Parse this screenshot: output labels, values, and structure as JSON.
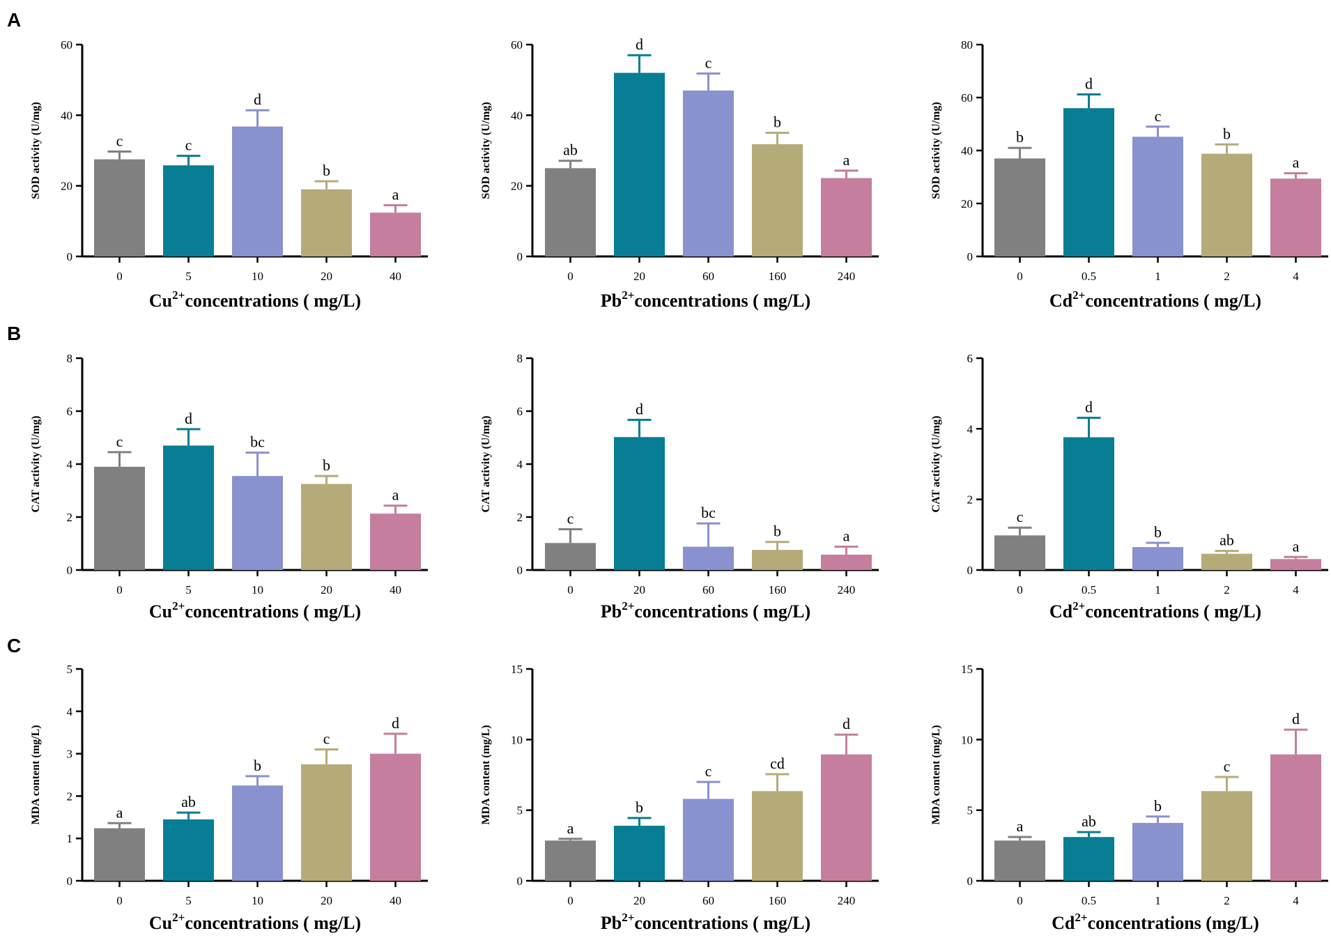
{
  "colors": [
    "#808080",
    "#077E94",
    "#8A91CF",
    "#B5AB78",
    "#C57E9E"
  ],
  "row_labels": [
    "A",
    "B",
    "C"
  ],
  "chart_data": [
    {
      "id": "A-Cu",
      "row": "A",
      "type": "bar",
      "title": "",
      "ylabel": "SOD activity (U/mg)",
      "xlabel": {
        "pre": "Cu",
        "sup": "2+",
        "post": "concentrations ( mg/L)"
      },
      "categories": [
        "0",
        "5",
        "10",
        "20",
        "40"
      ],
      "values": [
        27.5,
        25.8,
        36.8,
        19.0,
        12.4
      ],
      "errors": [
        2.2,
        2.7,
        4.6,
        2.3,
        2.1
      ],
      "significance": [
        "c",
        "c",
        "d",
        "b",
        "a"
      ],
      "ylim": [
        0,
        60
      ],
      "yticks": [
        "0",
        "20",
        "40",
        "60"
      ]
    },
    {
      "id": "A-Pb",
      "row": "A",
      "type": "bar",
      "title": "",
      "ylabel": "SOD activity (U/mg)",
      "xlabel": {
        "pre": "Pb",
        "sup": "2+",
        "post": "concentrations ( mg/L)"
      },
      "categories": [
        "0",
        "20",
        "60",
        "160",
        "240"
      ],
      "values": [
        25.0,
        52.0,
        47.0,
        31.8,
        22.2
      ],
      "errors": [
        2.1,
        5.0,
        4.8,
        3.2,
        2.1
      ],
      "significance": [
        "ab",
        "d",
        "c",
        "b",
        "a"
      ],
      "ylim": [
        0,
        60
      ],
      "yticks": [
        "0",
        "20",
        "40",
        "60"
      ]
    },
    {
      "id": "A-Cd",
      "row": "A",
      "type": "bar",
      "title": "",
      "ylabel": "SOD activity (U/mg)",
      "xlabel": {
        "pre": "Cd",
        "sup": "2+",
        "post": "concentrations ( mg/L)"
      },
      "categories": [
        "0",
        "0.5",
        "1",
        "2",
        "4"
      ],
      "values": [
        37.0,
        56.0,
        45.2,
        38.8,
        29.4
      ],
      "errors": [
        4.0,
        5.2,
        3.8,
        3.5,
        2.0
      ],
      "significance": [
        "b",
        "d",
        "c",
        "b",
        "a"
      ],
      "ylim": [
        0,
        80
      ],
      "yticks": [
        "0",
        "20",
        "40",
        "60",
        "80"
      ]
    },
    {
      "id": "B-Cu",
      "row": "B",
      "type": "bar",
      "title": "",
      "ylabel": "CAT activity (U/mg)",
      "xlabel": {
        "pre": "Cu",
        "sup": "2+",
        "post": "concentrations ( mg/L)"
      },
      "categories": [
        "0",
        "5",
        "10",
        "20",
        "40"
      ],
      "values": [
        3.9,
        4.7,
        3.55,
        3.25,
        2.13
      ],
      "errors": [
        0.55,
        0.62,
        0.88,
        0.3,
        0.3
      ],
      "significance": [
        "c",
        "d",
        "bc",
        "b",
        "a"
      ],
      "ylim": [
        0,
        8
      ],
      "yticks": [
        "0",
        "2",
        "4",
        "6",
        "8"
      ]
    },
    {
      "id": "B-Pb",
      "row": "B",
      "type": "bar",
      "title": "",
      "ylabel": "CAT activity (U/mg)",
      "xlabel": {
        "pre": "Pb",
        "sup": "2+",
        "post": "concentrations ( mg/L)"
      },
      "categories": [
        "0",
        "20",
        "60",
        "160",
        "240"
      ],
      "values": [
        1.02,
        5.02,
        0.88,
        0.76,
        0.58
      ],
      "errors": [
        0.52,
        0.65,
        0.88,
        0.3,
        0.3
      ],
      "significance": [
        "c",
        "d",
        "bc",
        "b",
        "a"
      ],
      "ylim": [
        0,
        8
      ],
      "yticks": [
        "0",
        "2",
        "4",
        "6",
        "8"
      ]
    },
    {
      "id": "B-Cd",
      "row": "B",
      "type": "bar",
      "title": "",
      "ylabel": "CAT activity (U/mg)",
      "xlabel": {
        "pre": "Cd",
        "sup": "2+",
        "post": "concentrations ( mg/L)"
      },
      "categories": [
        "0",
        "0.5",
        "1",
        "2",
        "4"
      ],
      "values": [
        0.98,
        3.76,
        0.65,
        0.46,
        0.31
      ],
      "errors": [
        0.22,
        0.55,
        0.12,
        0.08,
        0.06
      ],
      "significance": [
        "c",
        "d",
        "b",
        "ab",
        "a"
      ],
      "ylim": [
        0,
        6
      ],
      "yticks": [
        "0",
        "2",
        "4",
        "6"
      ]
    },
    {
      "id": "C-Cu",
      "row": "C",
      "type": "bar",
      "title": "",
      "ylabel": "MDA content (mg/L)",
      "xlabel": {
        "pre": "Cu",
        "sup": "2+",
        "post": "concentrations ( mg/L)"
      },
      "categories": [
        "0",
        "5",
        "10",
        "20",
        "40"
      ],
      "values": [
        1.24,
        1.45,
        2.25,
        2.75,
        3.0
      ],
      "errors": [
        0.12,
        0.16,
        0.22,
        0.35,
        0.47
      ],
      "significance": [
        "a",
        "ab",
        "b",
        "c",
        "d"
      ],
      "ylim": [
        0,
        5
      ],
      "yticks": [
        "0",
        "1",
        "2",
        "3",
        "4",
        "5"
      ]
    },
    {
      "id": "C-Pb",
      "row": "C",
      "type": "bar",
      "title": "",
      "ylabel": "MDA content (mg/L)",
      "xlabel": {
        "pre": "Pb",
        "sup": "2+",
        "post": "concentrations ( mg/L)"
      },
      "categories": [
        "0",
        "20",
        "60",
        "160",
        "240"
      ],
      "values": [
        2.85,
        3.9,
        5.8,
        6.35,
        8.95
      ],
      "errors": [
        0.12,
        0.55,
        1.2,
        1.2,
        1.4
      ],
      "significance": [
        "a",
        "b",
        "c",
        "cd",
        "d"
      ],
      "ylim": [
        0,
        15
      ],
      "yticks": [
        "0",
        "5",
        "10",
        "15"
      ]
    },
    {
      "id": "C-Cd",
      "row": "C",
      "type": "bar",
      "title": "",
      "ylabel": "MDA content (mg/L)",
      "xlabel": {
        "pre": "Cd",
        "sup": "2+",
        "post": "concentrations (mg/L)"
      },
      "categories": [
        "0",
        "0.5",
        "1",
        "2",
        "4"
      ],
      "values": [
        2.85,
        3.1,
        4.1,
        6.35,
        8.95
      ],
      "errors": [
        0.25,
        0.35,
        0.45,
        1.0,
        1.75
      ],
      "significance": [
        "a",
        "ab",
        "b",
        "c",
        "d"
      ],
      "ylim": [
        0,
        15
      ],
      "yticks": [
        "0",
        "5",
        "10",
        "15"
      ]
    }
  ]
}
